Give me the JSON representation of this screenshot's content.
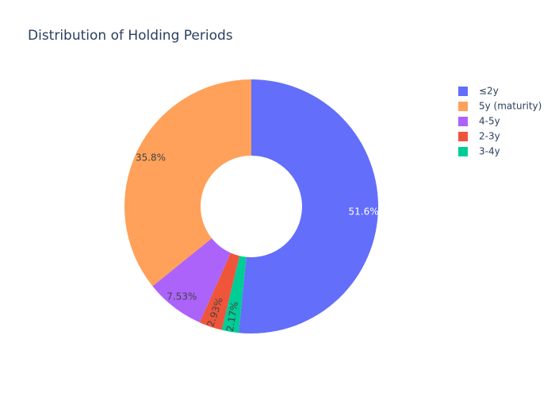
{
  "chart_data": {
    "type": "pie",
    "hole": true,
    "title": "Distribution of Holding Periods",
    "labels": [
      "≤2y",
      "5y (maturity)",
      "4-5y",
      "2-3y",
      "3-4y"
    ],
    "values": [
      51.6,
      35.8,
      7.53,
      2.93,
      2.17
    ],
    "percent_labels": [
      "51.6%",
      "35.8%",
      "7.53%",
      "2.93%",
      "2.17%"
    ],
    "slice_order": [
      "≤2y",
      "3-4y",
      "2-3y",
      "4-5y",
      "5y (maturity)"
    ],
    "colors": {
      "≤2y": "#636efa",
      "5y (maturity)": "#ffa15a",
      "4-5y": "#ab63fa",
      "2-3y": "#ef553b",
      "3-4y": "#00cc96"
    },
    "legend_position": "top-right"
  }
}
